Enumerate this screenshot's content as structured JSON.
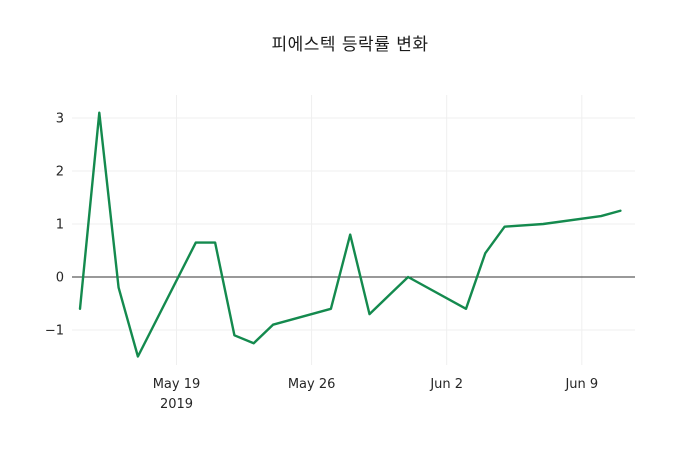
{
  "chart_data": {
    "type": "line",
    "title": "피에스텍 등락률 변화",
    "xlabel": "",
    "ylabel": "",
    "ylim": [
      -1.66,
      3.43
    ],
    "grid": true,
    "zero_line": true,
    "legend": "none",
    "colors": {
      "line": "#148a4e",
      "zero_line": "#333333",
      "grid": "#efefef",
      "text": "#262626"
    },
    "series": [
      {
        "name": "등락률",
        "x": [
          "2019-05-14",
          "2019-05-15",
          "2019-05-16",
          "2019-05-17",
          "2019-05-20",
          "2019-05-21",
          "2019-05-22",
          "2019-05-23",
          "2019-05-24",
          "2019-05-27",
          "2019-05-28",
          "2019-05-29",
          "2019-05-30",
          "2019-05-31",
          "2019-06-03",
          "2019-06-04",
          "2019-06-05",
          "2019-06-07",
          "2019-06-10",
          "2019-06-11"
        ],
        "values": [
          -0.6,
          3.1,
          -0.2,
          -1.5,
          0.65,
          0.65,
          -1.1,
          -1.25,
          -0.9,
          -0.6,
          0.8,
          -0.7,
          -0.35,
          0.0,
          -0.6,
          0.45,
          0.95,
          1.0,
          1.15,
          1.25
        ]
      }
    ],
    "x_ticks": [
      {
        "date": "2019-05-19",
        "label": "May 19",
        "sublabel": "2019"
      },
      {
        "date": "2019-05-26",
        "label": "May 26",
        "sublabel": ""
      },
      {
        "date": "2019-06-02",
        "label": "Jun 2",
        "sublabel": ""
      },
      {
        "date": "2019-06-09",
        "label": "Jun 9",
        "sublabel": ""
      }
    ],
    "y_ticks": [
      {
        "value": 3,
        "label": "3"
      },
      {
        "value": 2,
        "label": "2"
      },
      {
        "value": 1,
        "label": "1"
      },
      {
        "value": 0,
        "label": "0"
      },
      {
        "value": -1,
        "label": "−1"
      }
    ]
  }
}
